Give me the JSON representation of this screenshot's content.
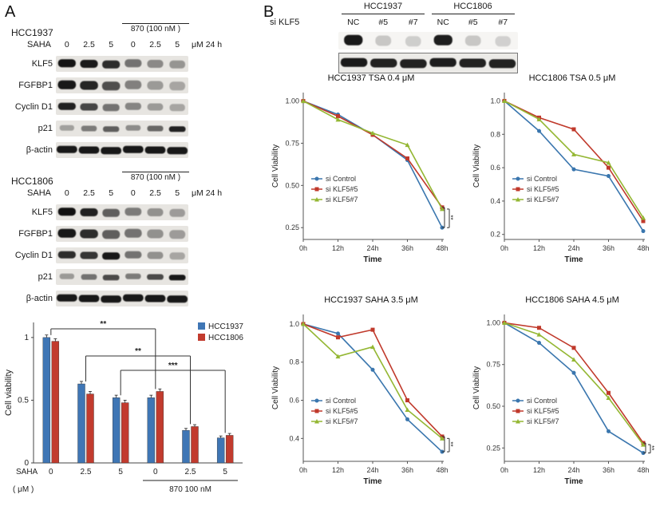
{
  "figure": {
    "panelA_label": "A",
    "panelB_label": "B"
  },
  "panelA": {
    "blocks": [
      {
        "cell_line": "HCC1937",
        "treatment_label": "870 (100 nM )",
        "dose_label": "SAHA",
        "doses": [
          "0",
          "2.5",
          "5",
          "0",
          "2.5",
          "5"
        ],
        "dose_unit": "μM 24 h",
        "rows": [
          {
            "label": "KLF5",
            "band_h": 10,
            "band_w": 0.8,
            "bands": [
              0.97,
              0.93,
              0.85,
              0.5,
              0.33,
              0.28
            ]
          },
          {
            "label": "FGFBP1",
            "band_h": 11,
            "band_w": 0.82,
            "bands": [
              0.95,
              0.88,
              0.68,
              0.38,
              0.26,
              0.2
            ]
          },
          {
            "label": "Cyclin D1",
            "band_h": 9,
            "band_w": 0.8,
            "bands": [
              0.9,
              0.72,
              0.5,
              0.36,
              0.26,
              0.2
            ]
          },
          {
            "label": "p21",
            "band_h": 7,
            "band_w": 0.75,
            "bands": [
              0.22,
              0.45,
              0.6,
              0.32,
              0.55,
              0.9
            ]
          },
          {
            "label": "β-actin",
            "band_h": 9,
            "band_w": 0.93,
            "bands": [
              0.95,
              0.95,
              0.95,
              0.95,
              0.95,
              0.95
            ]
          }
        ]
      },
      {
        "cell_line": "HCC1806",
        "treatment_label": "870 (100 nM )",
        "dose_label": "SAHA",
        "doses": [
          "0",
          "2.5",
          "5",
          "0",
          "2.5",
          "5"
        ],
        "dose_unit": "μM 24 h",
        "rows": [
          {
            "label": "KLF5",
            "band_h": 10,
            "band_w": 0.8,
            "bands": [
              0.98,
              0.9,
              0.6,
              0.45,
              0.3,
              0.24
            ]
          },
          {
            "label": "FGFBP1",
            "band_h": 11,
            "band_w": 0.82,
            "bands": [
              0.95,
              0.85,
              0.6,
              0.5,
              0.3,
              0.24
            ]
          },
          {
            "label": "Cyclin D1",
            "band_h": 9,
            "band_w": 0.8,
            "bands": [
              0.85,
              0.8,
              0.95,
              0.5,
              0.3,
              0.2
            ]
          },
          {
            "label": "p21",
            "band_h": 7,
            "band_w": 0.75,
            "bands": [
              0.25,
              0.5,
              0.7,
              0.45,
              0.7,
              0.95
            ]
          },
          {
            "label": "β-actin",
            "band_h": 9,
            "band_w": 0.93,
            "bands": [
              0.95,
              0.95,
              0.95,
              0.95,
              0.95,
              0.95
            ]
          }
        ]
      }
    ]
  },
  "panelB": {
    "blot": {
      "si_label": "si KLF5",
      "groups": [
        {
          "name": "HCC1937"
        },
        {
          "name": "HCC1806"
        }
      ],
      "lanes": [
        "NC",
        "#5",
        "#7",
        "NC",
        "#5",
        "#7"
      ],
      "strips": [
        {
          "name": "klf5-blot",
          "band_h": 13,
          "band_w": 0.62,
          "bg": "#f6f5f3",
          "bands": [
            0.95,
            0.1,
            0.07,
            0.92,
            0.1,
            0.06
          ]
        },
        {
          "name": "loading-blot",
          "band_h": 11,
          "band_w": 0.9,
          "bg": "#ecebe8",
          "bands": [
            0.93,
            0.9,
            0.9,
            0.92,
            0.9,
            0.9
          ]
        }
      ]
    }
  },
  "chart_data": [
    {
      "id": "viability-bar",
      "type": "bar",
      "ylabel": "Cell viability",
      "yticks": [
        0,
        0.5,
        1
      ],
      "ylim": [
        0,
        1.12
      ],
      "categories": [
        "0",
        "2.5",
        "5",
        "0",
        "2.5",
        "5"
      ],
      "xlabel_left": [
        "SAHA",
        "( μM )"
      ],
      "x_underline": {
        "label": "870 100 nM",
        "from": 3,
        "to": 5
      },
      "series": [
        {
          "name": "HCC1937",
          "color": "#3f76b5",
          "values": [
            1.0,
            0.63,
            0.52,
            0.52,
            0.26,
            0.2
          ],
          "err": [
            0.02,
            0.02,
            0.02,
            0.02,
            0.015,
            0.015
          ]
        },
        {
          "name": "HCC1806",
          "color": "#c23b2e",
          "values": [
            0.97,
            0.55,
            0.48,
            0.57,
            0.29,
            0.22
          ],
          "err": [
            0.02,
            0.02,
            0.02,
            0.02,
            0.015,
            0.015
          ]
        }
      ],
      "brackets": [
        {
          "from": 0,
          "to": 3,
          "label": "**"
        },
        {
          "from": 1,
          "to": 4,
          "label": "**"
        },
        {
          "from": 2,
          "to": 5,
          "label": "***"
        }
      ]
    },
    {
      "id": "hcc1937-tsa",
      "type": "line",
      "title": "HCC1937 TSA 0.4 μM",
      "xlabel": "Time",
      "ylabel": "Cell Viability",
      "x": [
        "0h",
        "12h",
        "24h",
        "36h",
        "48h"
      ],
      "yticks": [
        0.25,
        0.5,
        0.75,
        1.0
      ],
      "ytick_labels": [
        "0.25",
        "0.50",
        "0.75",
        "1.00"
      ],
      "ylim": [
        0.18,
        1.05
      ],
      "series": [
        {
          "name": "si Control",
          "color": "#3a76ae",
          "marker": "circle",
          "values": [
            1.0,
            0.92,
            0.8,
            0.65,
            0.25
          ]
        },
        {
          "name": "si KLF5#5",
          "color": "#c0392b",
          "marker": "square",
          "values": [
            1.0,
            0.91,
            0.8,
            0.66,
            0.37
          ]
        },
        {
          "name": "si KLF5#7",
          "color": "#94b733",
          "marker": "triangle",
          "values": [
            1.0,
            0.89,
            0.81,
            0.74,
            0.36
          ]
        }
      ],
      "sig": [
        {
          "span": [
            0,
            1
          ],
          "label": "**"
        },
        {
          "span": [
            0,
            2
          ],
          "label": "**"
        }
      ]
    },
    {
      "id": "hcc1806-tsa",
      "type": "line",
      "title": "HCC1806 TSA 0.5 μM",
      "xlabel": "Time",
      "ylabel": "Cell Viability",
      "x": [
        "0h",
        "12h",
        "24h",
        "36h",
        "48h"
      ],
      "yticks": [
        0.2,
        0.4,
        0.6,
        0.8,
        1.0
      ],
      "ytick_labels": [
        "0.2",
        "0.4",
        "0.6",
        "0.8",
        "1.0"
      ],
      "ylim": [
        0.17,
        1.05
      ],
      "series": [
        {
          "name": "si Control",
          "color": "#3a76ae",
          "marker": "circle",
          "values": [
            1.0,
            0.82,
            0.59,
            0.55,
            0.22
          ]
        },
        {
          "name": "si KLF5#5",
          "color": "#c0392b",
          "marker": "square",
          "values": [
            1.0,
            0.9,
            0.83,
            0.6,
            0.28
          ]
        },
        {
          "name": "si KLF5#7",
          "color": "#94b733",
          "marker": "triangle",
          "values": [
            1.0,
            0.89,
            0.68,
            0.63,
            0.3
          ]
        }
      ],
      "sig": []
    },
    {
      "id": "hcc1937-saha",
      "type": "line",
      "title": "HCC1937 SAHA 3.5 μM",
      "xlabel": "Time",
      "ylabel": "Cell Viability",
      "x": [
        "0h",
        "12h",
        "24h",
        "36h",
        "48h"
      ],
      "yticks": [
        0.4,
        0.6,
        0.8,
        1.0
      ],
      "ytick_labels": [
        "0.4",
        "0.6",
        "0.8",
        "1.0"
      ],
      "ylim": [
        0.28,
        1.05
      ],
      "series": [
        {
          "name": "si Control",
          "color": "#3a76ae",
          "marker": "circle",
          "values": [
            1.0,
            0.95,
            0.76,
            0.5,
            0.33
          ]
        },
        {
          "name": "si KLF5#5",
          "color": "#c0392b",
          "marker": "square",
          "values": [
            1.0,
            0.93,
            0.97,
            0.6,
            0.41
          ]
        },
        {
          "name": "si KLF5#7",
          "color": "#94b733",
          "marker": "triangle",
          "values": [
            1.0,
            0.83,
            0.88,
            0.55,
            0.4
          ]
        }
      ],
      "sig": [
        {
          "span": [
            0,
            1
          ],
          "label": "**"
        },
        {
          "span": [
            0,
            2
          ],
          "label": "***"
        }
      ]
    },
    {
      "id": "hcc1806-saha",
      "type": "line",
      "title": "HCC1806 SAHA 4.5 μM",
      "xlabel": "Time",
      "ylabel": "Cell Viability",
      "x": [
        "0h",
        "12h",
        "24h",
        "36h",
        "48h"
      ],
      "yticks": [
        0.25,
        0.5,
        0.75,
        1.0
      ],
      "ytick_labels": [
        "0.25",
        "0.50",
        "0.75",
        "1.00"
      ],
      "ylim": [
        0.17,
        1.05
      ],
      "series": [
        {
          "name": "si Control",
          "color": "#3a76ae",
          "marker": "circle",
          "values": [
            1.0,
            0.88,
            0.7,
            0.35,
            0.22
          ]
        },
        {
          "name": "si KLF5#5",
          "color": "#c0392b",
          "marker": "square",
          "values": [
            1.0,
            0.97,
            0.85,
            0.58,
            0.28
          ]
        },
        {
          "name": "si KLF5#7",
          "color": "#94b733",
          "marker": "triangle",
          "values": [
            1.0,
            0.93,
            0.78,
            0.55,
            0.27
          ]
        }
      ],
      "sig": [
        {
          "span": [
            0,
            1
          ],
          "label": "**"
        },
        {
          "span": [
            0,
            2
          ],
          "label": "***"
        }
      ]
    }
  ]
}
